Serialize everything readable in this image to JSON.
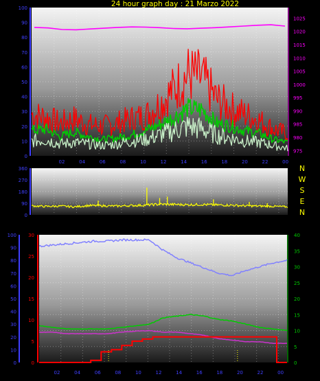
{
  "title": "24 hour graph day : 21 Marzo 2022",
  "colors": {
    "background": "#000000",
    "title": "#ffff00",
    "wind_speed": "#ff0000",
    "wind_avg": "#00cc00",
    "wind_min": "#c8f0c8",
    "pressure": "#ff00ff",
    "direction": "#ffff00",
    "humidity": "#8080ff",
    "temperature": "#00cc00",
    "dewpoint": "#cc33cc",
    "rain": "#ff0000",
    "rain_marker": "#ffff00",
    "tick": "#4040ff"
  },
  "chart_data": [
    {
      "type": "line",
      "x_ticks": [
        "02",
        "04",
        "06",
        "08",
        "10",
        "12",
        "14",
        "16",
        "18",
        "20",
        "22",
        "00"
      ],
      "y_left_ticks": [
        "0",
        "10",
        "20",
        "30",
        "40",
        "50",
        "60",
        "70",
        "80",
        "90",
        "100"
      ],
      "y_right_ticks": [
        "975",
        "980",
        "985",
        "990",
        "995",
        "1000",
        "1005",
        "1010",
        "1015",
        "1020",
        "1025"
      ],
      "ylim_left": [
        0,
        100
      ],
      "ylim_right": [
        973,
        1029
      ],
      "grid": true,
      "series": [
        {
          "key": "wind_speed",
          "axis": "left",
          "values": [
            28,
            26,
            22,
            25,
            21,
            20,
            22,
            25,
            27,
            35,
            45,
            55,
            52,
            38,
            32,
            28,
            24,
            18,
            15
          ]
        },
        {
          "key": "wind_avg",
          "axis": "left",
          "values": [
            17,
            18,
            13,
            16,
            13,
            11,
            12,
            14,
            17,
            21,
            26,
            32,
            31,
            22,
            20,
            17,
            15,
            11,
            9
          ]
        },
        {
          "key": "wind_min",
          "axis": "left",
          "values": [
            10,
            11,
            8,
            9,
            8,
            7,
            8,
            10,
            11,
            14,
            17,
            20,
            18,
            14,
            12,
            10,
            9,
            7,
            5
          ]
        },
        {
          "key": "pressure",
          "axis": "right",
          "values": [
            1021.5,
            1021.3,
            1020.7,
            1020.6,
            1020.9,
            1021.2,
            1021.5,
            1021.7,
            1021.6,
            1021.4,
            1021.1,
            1021.0,
            1021.2,
            1021.4,
            1021.7,
            1022.0,
            1022.3,
            1022.5,
            1022.0
          ]
        }
      ]
    },
    {
      "type": "line",
      "x_ticks": [],
      "y_left_ticks": [
        "0",
        "90",
        "180",
        "270",
        "360"
      ],
      "ylim": [
        0,
        360
      ],
      "grid": true,
      "compass_labels": [
        "N",
        "W",
        "S",
        "E",
        "N"
      ],
      "series": [
        {
          "key": "direction",
          "values": [
            70,
            65,
            68,
            62,
            72,
            70,
            68,
            72,
            75,
            82,
            80,
            78,
            80,
            76,
            75,
            70,
            68,
            66,
            62
          ],
          "spikes": [
            [
              0.26,
              110
            ],
            [
              0.45,
              210
            ],
            [
              0.5,
              130
            ],
            [
              0.53,
              140
            ],
            [
              0.71,
              120
            ],
            [
              0.85,
              100
            ],
            [
              0.92,
              90
            ]
          ]
        }
      ]
    },
    {
      "type": "line",
      "x_ticks": [
        "02",
        "04",
        "06",
        "08",
        "10",
        "12",
        "14",
        "16",
        "18",
        "20",
        "22",
        "00"
      ],
      "y_left_ticks": [
        "0",
        "10",
        "20",
        "30",
        "40",
        "50",
        "60",
        "70",
        "80",
        "90",
        "100"
      ],
      "y_mid_ticks": [
        "0",
        "5",
        "10",
        "15",
        "20",
        "25",
        "30"
      ],
      "y_right_ticks": [
        "0",
        "5",
        "10",
        "15",
        "20",
        "25",
        "30",
        "35",
        "40"
      ],
      "grid": true,
      "series": [
        {
          "key": "humidity",
          "axis": "left",
          "ylim": [
            0,
            100
          ],
          "values": [
            91,
            92,
            93,
            94,
            95,
            95,
            96,
            96,
            96,
            88,
            82,
            78,
            74,
            70,
            68,
            72,
            75,
            78,
            80
          ]
        },
        {
          "key": "temperature",
          "axis": "right",
          "ylim": [
            0,
            40
          ],
          "values": [
            11.5,
            11.0,
            10.5,
            10.5,
            10.5,
            10.5,
            11.0,
            11.5,
            12.0,
            14.0,
            14.5,
            15.0,
            14.5,
            13.5,
            13.0,
            12.0,
            11.0,
            10.5,
            10.0
          ]
        },
        {
          "key": "dewpoint",
          "axis": "right",
          "ylim": [
            0,
            40
          ],
          "values": [
            9.5,
            9.5,
            9.0,
            9.0,
            9.0,
            9.0,
            9.5,
            9.8,
            10.0,
            9.5,
            9.5,
            9.0,
            8.5,
            7.5,
            7.0,
            6.5,
            6.5,
            6.0,
            6.0
          ]
        },
        {
          "key": "rain",
          "axis": "mid",
          "ylim": [
            0,
            30
          ],
          "values": [
            0,
            0,
            0,
            0,
            0,
            0.5,
            2.5,
            3.0,
            4.0,
            5.0,
            5.5,
            6.0,
            6.0,
            6.0,
            6.0,
            6.0,
            6.0,
            6.0,
            6.0,
            6.0,
            6.0,
            6.0,
            6.0,
            0
          ]
        }
      ]
    }
  ]
}
